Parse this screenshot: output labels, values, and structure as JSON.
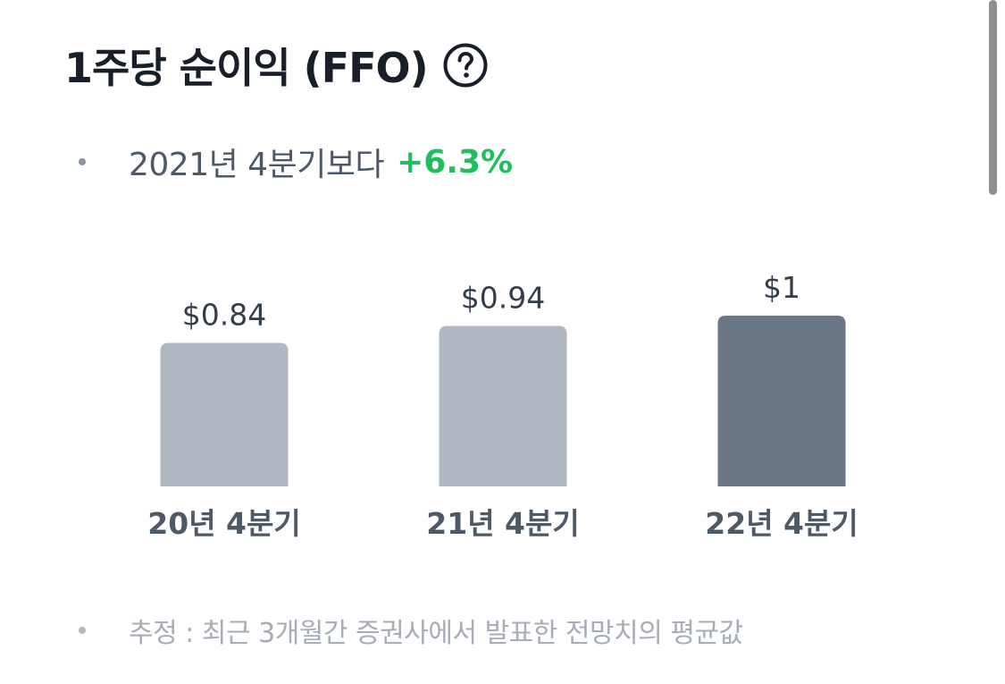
{
  "header": {
    "title": "1주당 순이익 (FFO)",
    "help_icon": "question-circle-icon"
  },
  "comparison": {
    "text": "2021년 4분기보다",
    "change": "+6.3%",
    "change_color": "#1fbf5e"
  },
  "footnote": {
    "text": "추정 : 최근 3개월간 증권사에서 발표한 전망치의 평균값"
  },
  "colors": {
    "past_bar": "#b0b8c1",
    "current_bar": "#6b7684"
  },
  "chart_data": {
    "type": "bar",
    "categories": [
      "20년 4분기",
      "21년 4분기",
      "22년 4분기"
    ],
    "values": [
      0.84,
      0.94,
      1.0
    ],
    "value_labels": [
      "$0.84",
      "$0.94",
      "$1"
    ],
    "highlight_index": 2,
    "title": "",
    "xlabel": "",
    "ylabel": "",
    "grid": false,
    "legend": "none"
  }
}
